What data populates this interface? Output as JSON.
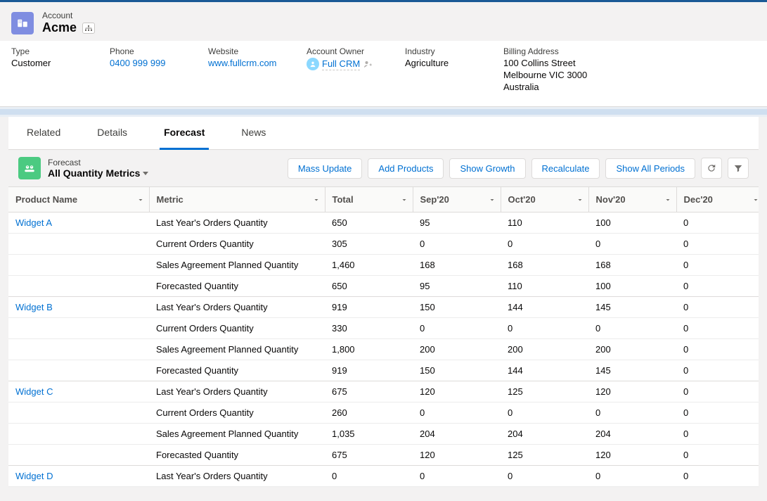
{
  "colors": {
    "brand_top": "#1a5a96",
    "link": "#0070d2",
    "panel_icon_bg": "#4bca81",
    "entity_icon_bg": "#7f8de1",
    "gap_bar": "#cfdff0",
    "border": "#dddbda",
    "text": "#3e3e3c",
    "bg": "#f3f2f2"
  },
  "account": {
    "entity_type": "Account",
    "name": "Acme",
    "fields": {
      "type": {
        "label": "Type",
        "value": "Customer"
      },
      "phone": {
        "label": "Phone",
        "value": "0400 999 999"
      },
      "website": {
        "label": "Website",
        "value": "www.fullcrm.com"
      },
      "owner": {
        "label": "Account Owner",
        "value": "Full CRM"
      },
      "industry": {
        "label": "Industry",
        "value": "Agriculture"
      },
      "billing": {
        "label": "Billing Address",
        "line1": "100 Collins Street",
        "line2": "Melbourne VIC 3000",
        "line3": "Australia"
      }
    }
  },
  "tabs": {
    "related": "Related",
    "details": "Details",
    "forecast": "Forecast",
    "news": "News",
    "active": "forecast"
  },
  "forecast_panel": {
    "sub": "Forecast",
    "title": "All Quantity Metrics",
    "buttons": {
      "mass_update": "Mass Update",
      "add_products": "Add Products",
      "show_growth": "Show Growth",
      "recalculate": "Recalculate",
      "show_all_periods": "Show All Periods"
    }
  },
  "table": {
    "columns": {
      "product": "Product Name",
      "metric": "Metric",
      "total": "Total",
      "m1": "Sep'20",
      "m2": "Oct'20",
      "m3": "Nov'20",
      "m4": "Dec'20"
    },
    "metrics": {
      "last_year": "Last Year's Orders Quantity",
      "current": "Current Orders Quantity",
      "planned": "Sales Agreement Planned Quantity",
      "forecasted": "Forecasted Quantity"
    },
    "products": [
      {
        "name": "Widget A",
        "rows": [
          {
            "metric_key": "last_year",
            "total": "650",
            "m1": "95",
            "m2": "110",
            "m3": "100",
            "m4": "0"
          },
          {
            "metric_key": "current",
            "total": "305",
            "m1": "0",
            "m2": "0",
            "m3": "0",
            "m4": "0"
          },
          {
            "metric_key": "planned",
            "total": "1,460",
            "m1": "168",
            "m2": "168",
            "m3": "168",
            "m4": "0"
          },
          {
            "metric_key": "forecasted",
            "total": "650",
            "m1": "95",
            "m2": "110",
            "m3": "100",
            "m4": "0"
          }
        ]
      },
      {
        "name": "Widget B",
        "rows": [
          {
            "metric_key": "last_year",
            "total": "919",
            "m1": "150",
            "m2": "144",
            "m3": "145",
            "m4": "0"
          },
          {
            "metric_key": "current",
            "total": "330",
            "m1": "0",
            "m2": "0",
            "m3": "0",
            "m4": "0"
          },
          {
            "metric_key": "planned",
            "total": "1,800",
            "m1": "200",
            "m2": "200",
            "m3": "200",
            "m4": "0"
          },
          {
            "metric_key": "forecasted",
            "total": "919",
            "m1": "150",
            "m2": "144",
            "m3": "145",
            "m4": "0"
          }
        ]
      },
      {
        "name": "Widget C",
        "rows": [
          {
            "metric_key": "last_year",
            "total": "675",
            "m1": "120",
            "m2": "125",
            "m3": "120",
            "m4": "0"
          },
          {
            "metric_key": "current",
            "total": "260",
            "m1": "0",
            "m2": "0",
            "m3": "0",
            "m4": "0"
          },
          {
            "metric_key": "planned",
            "total": "1,035",
            "m1": "204",
            "m2": "204",
            "m3": "204",
            "m4": "0"
          },
          {
            "metric_key": "forecasted",
            "total": "675",
            "m1": "120",
            "m2": "125",
            "m3": "120",
            "m4": "0"
          }
        ]
      },
      {
        "name": "Widget D",
        "rows": [
          {
            "metric_key": "last_year",
            "total": "0",
            "m1": "0",
            "m2": "0",
            "m3": "0",
            "m4": "0"
          }
        ]
      }
    ]
  }
}
